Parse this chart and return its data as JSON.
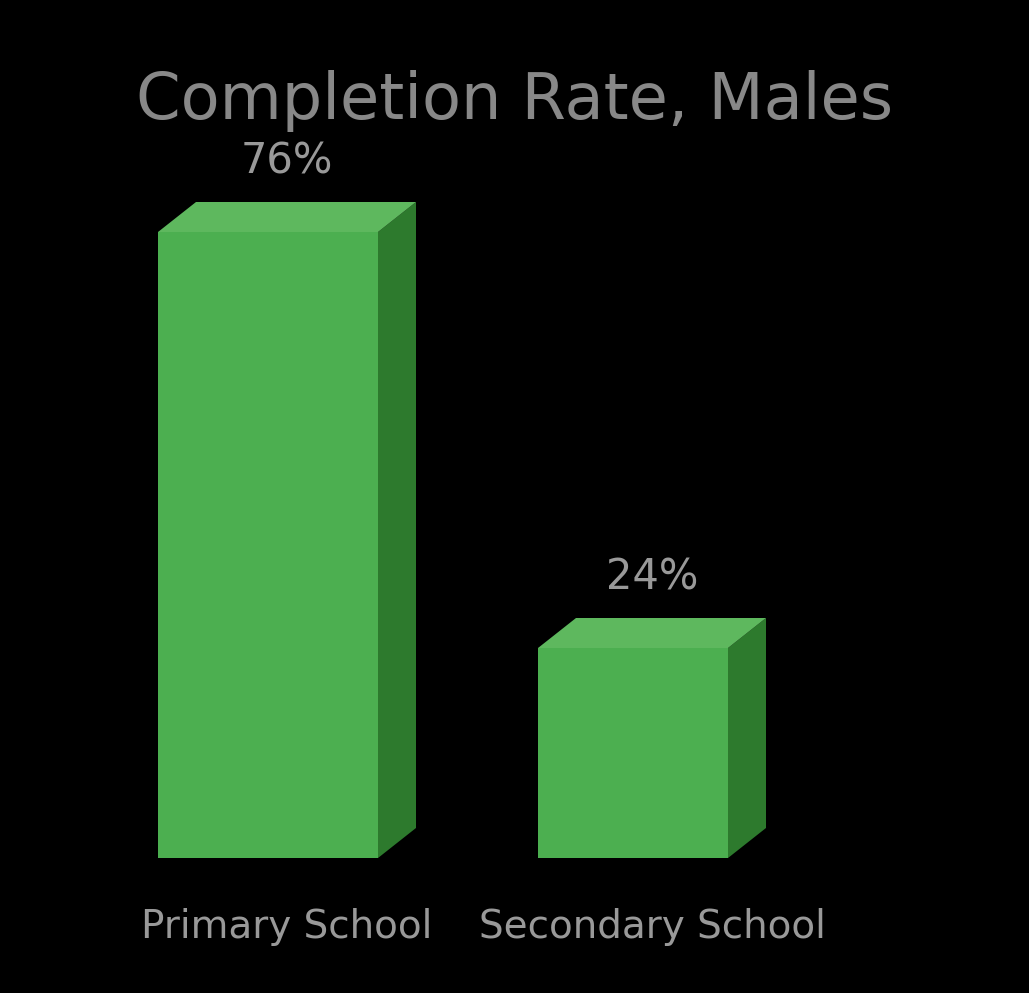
{
  "title": "Completion Rate, Males",
  "categories": [
    "Primary School",
    "Secondary School"
  ],
  "values": [
    76,
    24
  ],
  "labels": [
    "76%",
    "24%"
  ],
  "background_color": "#000000",
  "bar_face_color": "#4CAF50",
  "bar_top_color": "#5EB85E",
  "bar_side_color": "#2D7A2D",
  "text_color": "#999999",
  "title_color": "#888888",
  "title_fontsize": 46,
  "label_fontsize": 30,
  "tick_fontsize": 28,
  "max_value": 100
}
